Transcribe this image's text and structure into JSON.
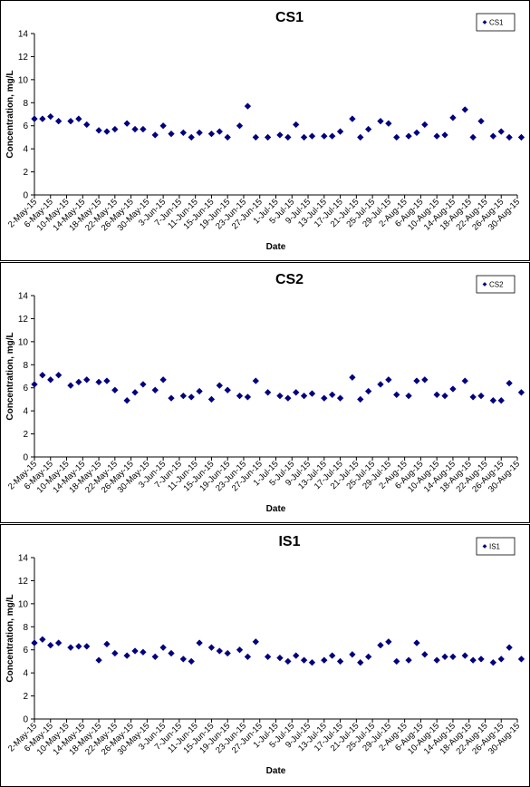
{
  "colors": {
    "marker": "#00007f",
    "axis": "#000000",
    "background": "#ffffff"
  },
  "chart_data": [
    {
      "type": "scatter",
      "title": "CS1",
      "xlabel": "Date",
      "ylabel": "Concentration, mg/L",
      "ylim": [
        0,
        14
      ],
      "yticks": [
        "0",
        "2",
        "4",
        "6",
        "8",
        "10",
        "12",
        "14"
      ],
      "grid": false,
      "legend_placement": "top-right",
      "xlim": [
        "2015-05-02",
        "2015-08-30"
      ],
      "x_tick_labels": [
        "2-May-15",
        "6-May-15",
        "10-May-15",
        "14-May-15",
        "18-May-15",
        "22-May-15",
        "26-May-15",
        "30-May-15",
        "3-Jun-15",
        "7-Jun-15",
        "11-Jun-15",
        "15-Jun-15",
        "19-Jun-15",
        "23-Jun-15",
        "27-Jun-15",
        "1-Jul-15",
        "5-Jul-15",
        "9-Jul-15",
        "13-Jul-15",
        "17-Jul-15",
        "21-Jul-15",
        "25-Jul-15",
        "29-Jul-15",
        "2-Aug-15",
        "6-Aug-15",
        "10-Aug-15",
        "14-Aug-15",
        "18-Aug-15",
        "22-Aug-15",
        "26-Aug-15",
        "30-Aug-15"
      ],
      "series": [
        {
          "name": "CS1",
          "x": [
            "2015-05-02",
            "2015-05-04",
            "2015-05-06",
            "2015-05-08",
            "2015-05-11",
            "2015-05-13",
            "2015-05-15",
            "2015-05-18",
            "2015-05-20",
            "2015-05-22",
            "2015-05-25",
            "2015-05-27",
            "2015-05-29",
            "2015-06-01",
            "2015-06-03",
            "2015-06-05",
            "2015-06-08",
            "2015-06-10",
            "2015-06-12",
            "2015-06-15",
            "2015-06-17",
            "2015-06-19",
            "2015-06-22",
            "2015-06-24",
            "2015-06-26",
            "2015-06-29",
            "2015-07-02",
            "2015-07-04",
            "2015-07-06",
            "2015-07-08",
            "2015-07-10",
            "2015-07-13",
            "2015-07-15",
            "2015-07-17",
            "2015-07-20",
            "2015-07-22",
            "2015-07-24",
            "2015-07-27",
            "2015-07-29",
            "2015-07-31",
            "2015-08-03",
            "2015-08-05",
            "2015-08-07",
            "2015-08-10",
            "2015-08-12",
            "2015-08-14",
            "2015-08-17",
            "2015-08-19",
            "2015-08-21",
            "2015-08-24",
            "2015-08-26",
            "2015-08-28",
            "2015-08-31"
          ],
          "y": [
            6.6,
            6.6,
            6.8,
            6.4,
            6.4,
            6.6,
            6.1,
            5.6,
            5.5,
            5.7,
            6.2,
            5.7,
            5.7,
            5.2,
            6.0,
            5.3,
            5.4,
            5.0,
            5.4,
            5.3,
            5.5,
            5.0,
            6.0,
            7.7,
            5.0,
            5.0,
            5.2,
            5.0,
            6.1,
            5.0,
            5.1,
            5.1,
            5.1,
            5.5,
            6.6,
            5.0,
            5.7,
            6.4,
            6.2,
            5.0,
            5.1,
            5.4,
            6.1,
            5.1,
            5.2,
            6.7,
            7.4,
            5.0,
            6.4,
            5.1,
            5.5,
            5.0,
            5.0
          ]
        }
      ]
    },
    {
      "type": "scatter",
      "title": "CS2",
      "xlabel": "Date",
      "ylabel": "Concentration, mg/L",
      "ylim": [
        0,
        14
      ],
      "yticks": [
        "0",
        "2",
        "4",
        "6",
        "8",
        "10",
        "12",
        "14"
      ],
      "grid": false,
      "legend_placement": "top-right",
      "xlim": [
        "2015-05-02",
        "2015-08-30"
      ],
      "x_tick_labels": [
        "2-May-15",
        "6-May-15",
        "10-May-15",
        "14-May-15",
        "18-May-15",
        "22-May-15",
        "26-May-15",
        "30-May-15",
        "3-Jun-15",
        "7-Jun-15",
        "11-Jun-15",
        "15-Jun-15",
        "19-Jun-15",
        "23-Jun-15",
        "27-Jun-15",
        "1-Jul-15",
        "5-Jul-15",
        "9-Jul-15",
        "13-Jul-15",
        "17-Jul-15",
        "21-Jul-15",
        "25-Jul-15",
        "29-Jul-15",
        "2-Aug-15",
        "6-Aug-15",
        "10-Aug-15",
        "14-Aug-15",
        "18-Aug-15",
        "22-Aug-15",
        "26-Aug-15",
        "30-Aug-15"
      ],
      "series": [
        {
          "name": "CS2",
          "x": [
            "2015-05-02",
            "2015-05-04",
            "2015-05-06",
            "2015-05-08",
            "2015-05-11",
            "2015-05-13",
            "2015-05-15",
            "2015-05-18",
            "2015-05-20",
            "2015-05-22",
            "2015-05-25",
            "2015-05-27",
            "2015-05-29",
            "2015-06-01",
            "2015-06-03",
            "2015-06-05",
            "2015-06-08",
            "2015-06-10",
            "2015-06-12",
            "2015-06-15",
            "2015-06-17",
            "2015-06-19",
            "2015-06-22",
            "2015-06-24",
            "2015-06-26",
            "2015-06-29",
            "2015-07-02",
            "2015-07-04",
            "2015-07-06",
            "2015-07-08",
            "2015-07-10",
            "2015-07-13",
            "2015-07-15",
            "2015-07-17",
            "2015-07-20",
            "2015-07-22",
            "2015-07-24",
            "2015-07-27",
            "2015-07-29",
            "2015-07-31",
            "2015-08-03",
            "2015-08-05",
            "2015-08-07",
            "2015-08-10",
            "2015-08-12",
            "2015-08-14",
            "2015-08-17",
            "2015-08-19",
            "2015-08-21",
            "2015-08-24",
            "2015-08-26",
            "2015-08-28",
            "2015-08-31"
          ],
          "y": [
            6.3,
            7.1,
            6.7,
            7.1,
            6.2,
            6.5,
            6.7,
            6.5,
            6.6,
            5.8,
            4.9,
            5.6,
            6.3,
            5.8,
            6.7,
            5.1,
            5.3,
            5.2,
            5.7,
            5.0,
            6.2,
            5.8,
            5.3,
            5.2,
            6.6,
            5.6,
            5.3,
            5.1,
            5.6,
            5.3,
            5.5,
            5.1,
            5.4,
            5.1,
            6.9,
            5.0,
            5.7,
            6.3,
            6.7,
            5.4,
            5.3,
            6.6,
            6.7,
            5.4,
            5.3,
            5.9,
            6.6,
            5.2,
            5.3,
            4.9,
            4.9,
            6.4,
            5.6
          ]
        }
      ]
    },
    {
      "type": "scatter",
      "title": "IS1",
      "xlabel": "Date",
      "ylabel": "Concentration, mg/L",
      "ylim": [
        0,
        14
      ],
      "yticks": [
        "0",
        "2",
        "4",
        "6",
        "8",
        "10",
        "12",
        "14"
      ],
      "grid": false,
      "legend_placement": "top-right",
      "xlim": [
        "2015-05-02",
        "2015-08-30"
      ],
      "x_tick_labels": [
        "2-May-15",
        "6-May-15",
        "10-May-15",
        "14-May-15",
        "18-May-15",
        "22-May-15",
        "26-May-15",
        "30-May-15",
        "3-Jun-15",
        "7-Jun-15",
        "11-Jun-15",
        "15-Jun-15",
        "19-Jun-15",
        "23-Jun-15",
        "27-Jun-15",
        "1-Jul-15",
        "5-Jul-15",
        "9-Jul-15",
        "13-Jul-15",
        "17-Jul-15",
        "21-Jul-15",
        "25-Jul-15",
        "29-Jul-15",
        "2-Aug-15",
        "6-Aug-15",
        "10-Aug-15",
        "14-Aug-15",
        "18-Aug-15",
        "22-Aug-15",
        "26-Aug-15",
        "30-Aug-15"
      ],
      "series": [
        {
          "name": "IS1",
          "x": [
            "2015-05-02",
            "2015-05-04",
            "2015-05-06",
            "2015-05-08",
            "2015-05-11",
            "2015-05-13",
            "2015-05-15",
            "2015-05-18",
            "2015-05-20",
            "2015-05-22",
            "2015-05-25",
            "2015-05-27",
            "2015-05-29",
            "2015-06-01",
            "2015-06-03",
            "2015-06-05",
            "2015-06-08",
            "2015-06-10",
            "2015-06-12",
            "2015-06-15",
            "2015-06-17",
            "2015-06-19",
            "2015-06-22",
            "2015-06-24",
            "2015-06-26",
            "2015-06-29",
            "2015-07-02",
            "2015-07-04",
            "2015-07-06",
            "2015-07-08",
            "2015-07-10",
            "2015-07-13",
            "2015-07-15",
            "2015-07-17",
            "2015-07-20",
            "2015-07-22",
            "2015-07-24",
            "2015-07-27",
            "2015-07-29",
            "2015-07-31",
            "2015-08-03",
            "2015-08-05",
            "2015-08-07",
            "2015-08-10",
            "2015-08-12",
            "2015-08-14",
            "2015-08-17",
            "2015-08-19",
            "2015-08-21",
            "2015-08-24",
            "2015-08-26",
            "2015-08-28",
            "2015-08-31"
          ],
          "y": [
            6.6,
            6.9,
            6.4,
            6.6,
            6.2,
            6.3,
            6.3,
            5.1,
            6.5,
            5.7,
            5.5,
            5.9,
            5.8,
            5.4,
            6.2,
            5.7,
            5.2,
            5.0,
            6.6,
            6.2,
            5.9,
            5.7,
            6.0,
            5.4,
            6.7,
            5.4,
            5.3,
            5.0,
            5.5,
            5.1,
            4.9,
            5.1,
            5.5,
            5.0,
            5.6,
            4.9,
            5.4,
            6.4,
            6.7,
            5.0,
            5.1,
            6.6,
            5.6,
            5.1,
            5.4,
            5.4,
            5.5,
            5.1,
            5.2,
            4.9,
            5.2,
            6.2,
            5.2
          ]
        }
      ]
    }
  ]
}
